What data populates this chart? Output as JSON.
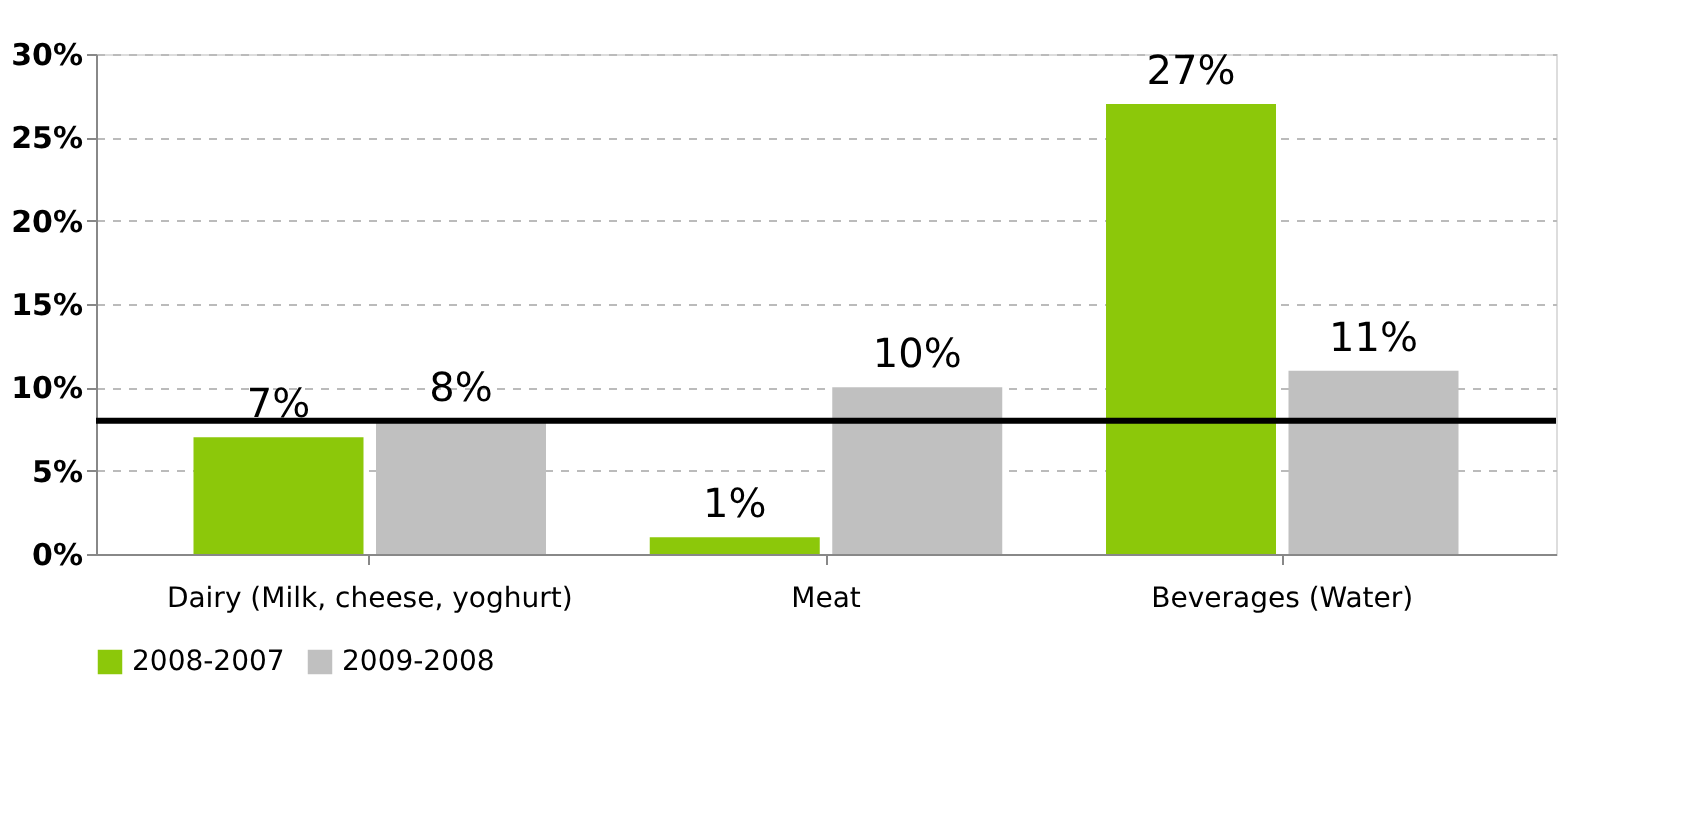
{
  "chart_data": {
    "type": "bar",
    "categories": [
      "Dairy (Milk, cheese, yoghurt)",
      "Meat",
      "Beverages (Water)"
    ],
    "series": [
      {
        "name": "2008-2007",
        "color": "#8cc80a",
        "values": [
          7,
          1,
          27
        ],
        "value_labels": [
          "7%",
          "1%",
          "27%"
        ]
      },
      {
        "name": "2009-2008",
        "color": "#c0c0c0",
        "values": [
          8,
          10,
          11
        ],
        "value_labels": [
          "8%",
          "10%",
          "11%"
        ]
      }
    ],
    "ylim": [
      0,
      30
    ],
    "yticks": [
      {
        "value": 0,
        "label": "0%"
      },
      {
        "value": 5,
        "label": "5%"
      },
      {
        "value": 10,
        "label": "10%"
      },
      {
        "value": 15,
        "label": "15%"
      },
      {
        "value": 20,
        "label": "20%"
      },
      {
        "value": 25,
        "label": "25%"
      },
      {
        "value": 30,
        "label": "30%"
      }
    ],
    "ref_lines": [
      {
        "axis": "y",
        "value": 8,
        "color": "#000000"
      }
    ],
    "grid": "y",
    "legend": "bottom"
  }
}
